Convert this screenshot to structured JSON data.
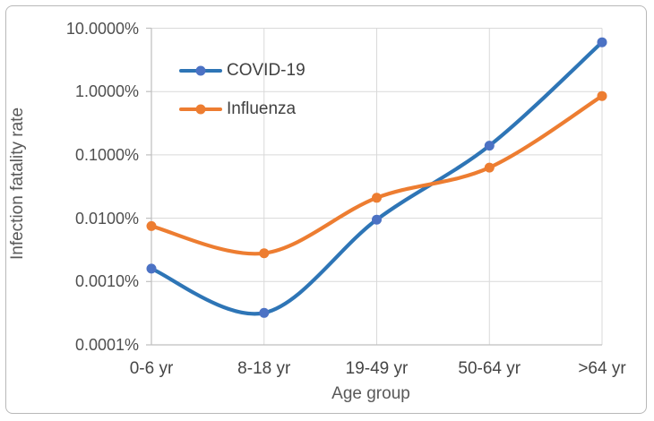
{
  "chart_data": {
    "type": "line",
    "title": "",
    "xlabel": "Age group",
    "ylabel": "Infection fatality rate",
    "categories": [
      "0-6 yr",
      "8-18 yr",
      "19-49 yr",
      "50-64 yr",
      ">64 yr"
    ],
    "y_scale": "log",
    "ylim": [
      0.0001,
      10
    ],
    "y_tick_labels": [
      "10.0000%",
      "1.0000%",
      "0.1000%",
      "0.0100%",
      "0.0010%",
      "0.0001%"
    ],
    "grid": true,
    "smoothed_lines": true,
    "legend_position": "inside-upper-left",
    "series": [
      {
        "name": "COVID-19",
        "line_color": "#2E75B6",
        "marker_color": "#4C72C4",
        "values": [
          0.0016,
          0.00032,
          0.0095,
          0.14,
          6.0
        ]
      },
      {
        "name": "Influenza",
        "line_color": "#ED7D31",
        "marker_color": "#ED7D31",
        "values": [
          0.0075,
          0.0028,
          0.021,
          0.063,
          0.85
        ]
      }
    ],
    "values_unit": "percent",
    "colors": {
      "gridline": "#D9D9D9",
      "axis_line": "#BFBFBF",
      "tick_text": "#4F4F4F",
      "axis_title_text": "#595959",
      "legend_text": "#404040",
      "frame_border": "#B8B8B8"
    }
  }
}
